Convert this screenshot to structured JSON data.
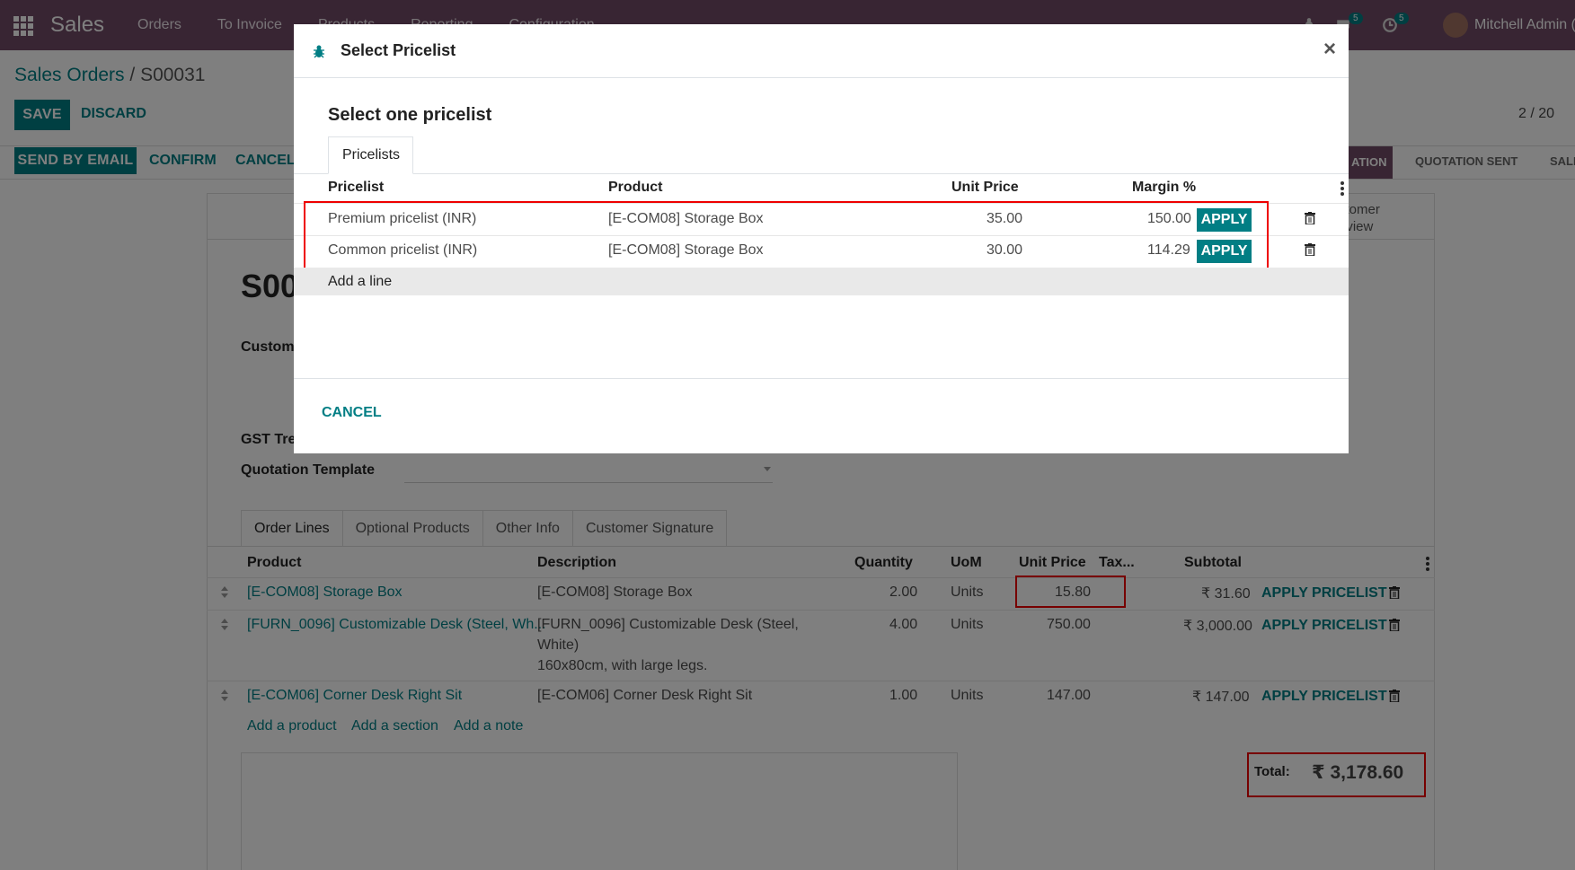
{
  "navbar": {
    "app_name": "Sales",
    "menu": [
      "Orders",
      "To Invoice",
      "Products",
      "Reporting",
      "Configuration"
    ],
    "messages_badge": "5",
    "activities_badge": "5",
    "user": "Mitchell Admin ("
  },
  "control_panel": {
    "breadcrumb_parent": "Sales Orders",
    "breadcrumb_sep": " / ",
    "breadcrumb_current": "S00031",
    "save_label": "SAVE",
    "discard_label": "DISCARD",
    "pager": "2 / 20",
    "send_email_label": "SEND BY EMAIL",
    "confirm_label": "CONFIRM",
    "cancel_label": "CANCEL",
    "stages": [
      "ATION",
      "QUOTATION SENT",
      "SALE"
    ]
  },
  "form": {
    "smart_button": [
      "stomer",
      "eview"
    ],
    "order_name": "S00",
    "labels": {
      "customer": "Custome",
      "gst": "GST Tre",
      "quotation_template": "Quotation Template"
    },
    "tabs": [
      "Order Lines",
      "Optional Products",
      "Other Info",
      "Customer Signature"
    ],
    "columns": {
      "product": "Product",
      "description": "Description",
      "quantity": "Quantity",
      "uom": "UoM",
      "unit_price": "Unit Price",
      "taxes": "Tax...",
      "subtotal": "Subtotal"
    },
    "lines": [
      {
        "product": "[E-COM08] Storage Box",
        "description": [
          "[E-COM08] Storage Box"
        ],
        "quantity": "2.00",
        "uom": "Units",
        "unit_price": "15.80",
        "subtotal": "₹ 31.60",
        "action": "APPLY PRICELIST"
      },
      {
        "product": "[FURN_0096] Customizable Desk (Steel, Wh...",
        "description": [
          "[FURN_0096] Customizable Desk (Steel,",
          "White)",
          "160x80cm, with large legs."
        ],
        "quantity": "4.00",
        "uom": "Units",
        "unit_price": "750.00",
        "subtotal": "₹ 3,000.00",
        "action": "APPLY PRICELIST"
      },
      {
        "product": "[E-COM06] Corner Desk Right Sit",
        "description": [
          "[E-COM06] Corner Desk Right Sit"
        ],
        "quantity": "1.00",
        "uom": "Units",
        "unit_price": "147.00",
        "subtotal": "₹ 147.00",
        "action": "APPLY PRICELIST"
      }
    ],
    "add_links": [
      "Add a product",
      "Add a section",
      "Add a note"
    ],
    "total_label": "Total:",
    "total_value": "₹ 3,178.60"
  },
  "modal": {
    "title": "Select Pricelist",
    "heading": "Select one pricelist",
    "tab": "Pricelists",
    "columns": {
      "pricelist": "Pricelist",
      "product": "Product",
      "unit_price": "Unit Price",
      "margin": "Margin %"
    },
    "rows": [
      {
        "pricelist": "Premium pricelist (INR)",
        "product": "[E-COM08] Storage Box",
        "unit_price": "35.00",
        "margin": "150.00",
        "apply": "APPLY"
      },
      {
        "pricelist": "Common pricelist (INR)",
        "product": "[E-COM08] Storage Box",
        "unit_price": "30.00",
        "margin": "114.29",
        "apply": "APPLY"
      }
    ],
    "add_line": "Add a line",
    "cancel_label": "CANCEL",
    "close_glyph": "×"
  },
  "colors": {
    "brand": "#714B67",
    "primary": "#017e84",
    "highlight": "#e00000"
  }
}
